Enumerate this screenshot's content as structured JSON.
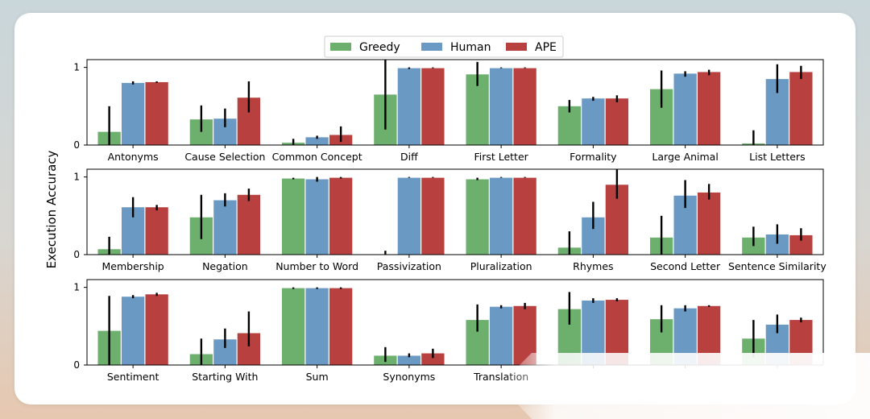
{
  "chart_data": {
    "type": "bar",
    "ylabel": "Execution Accuracy",
    "legend": {
      "placement": "top-center",
      "entries": [
        "Greedy",
        "Human",
        "APE"
      ]
    },
    "colors": {
      "Greedy": "#6daf6d",
      "Human": "#6a9ac4",
      "APE": "#b8403f",
      "errorbar": "#000000"
    },
    "ylim": [
      0,
      1.1
    ],
    "yticks": [
      "0",
      "1"
    ],
    "panels": [
      {
        "categories": [
          "Antonyms",
          "Cause Selection",
          "Common Concept",
          "Diff",
          "First Letter",
          "Formality",
          "Large Animal",
          "List Letters"
        ],
        "series": [
          {
            "name": "Greedy",
            "values": [
              0.17,
              0.33,
              0.03,
              0.65,
              0.91,
              0.5,
              0.72,
              0.02
            ],
            "err_low": [
              0.0,
              0.17,
              0.0,
              0.2,
              0.76,
              0.42,
              0.48,
              0.0
            ],
            "err_high": [
              0.5,
              0.51,
              0.08,
              1.12,
              1.07,
              0.58,
              0.96,
              0.19
            ]
          },
          {
            "name": "Human",
            "values": [
              0.8,
              0.34,
              0.1,
              0.99,
              0.99,
              0.6,
              0.92,
              0.85
            ],
            "err_low": [
              0.78,
              0.23,
              0.08,
              0.98,
              0.99,
              0.57,
              0.88,
              0.67
            ],
            "err_high": [
              0.82,
              0.47,
              0.12,
              1.0,
              1.0,
              0.62,
              0.95,
              1.04
            ]
          },
          {
            "name": "APE",
            "values": [
              0.81,
              0.61,
              0.13,
              0.99,
              0.99,
              0.6,
              0.94,
              0.94
            ],
            "err_low": [
              0.8,
              0.42,
              0.04,
              0.99,
              0.99,
              0.55,
              0.9,
              0.85
            ],
            "err_high": [
              0.82,
              0.82,
              0.24,
              1.0,
              1.0,
              0.64,
              0.97,
              1.02
            ]
          }
        ]
      },
      {
        "categories": [
          "Membership",
          "Negation",
          "Number to Word",
          "Passivization",
          "Pluralization",
          "Rhymes",
          "Second Letter",
          "Sentence Similarity"
        ],
        "series": [
          {
            "name": "Greedy",
            "values": [
              0.07,
              0.48,
              0.98,
              0.0,
              0.97,
              0.09,
              0.22,
              0.22
            ],
            "err_low": [
              0.0,
              0.2,
              0.97,
              0.0,
              0.96,
              0.0,
              0.0,
              0.11
            ],
            "err_high": [
              0.23,
              0.77,
              0.99,
              0.05,
              0.99,
              0.3,
              0.5,
              0.36
            ]
          },
          {
            "name": "Human",
            "values": [
              0.61,
              0.7,
              0.97,
              0.99,
              0.99,
              0.48,
              0.76,
              0.26
            ],
            "err_low": [
              0.48,
              0.62,
              0.94,
              0.99,
              0.99,
              0.33,
              0.6,
              0.14
            ],
            "err_high": [
              0.74,
              0.79,
              1.0,
              1.0,
              1.0,
              0.68,
              0.96,
              0.39
            ]
          },
          {
            "name": "APE",
            "values": [
              0.61,
              0.77,
              0.99,
              0.99,
              0.99,
              0.9,
              0.8,
              0.25
            ],
            "err_low": [
              0.57,
              0.69,
              0.98,
              0.99,
              0.99,
              0.72,
              0.71,
              0.18
            ],
            "err_high": [
              0.64,
              0.85,
              1.0,
              1.0,
              1.0,
              1.1,
              0.91,
              0.34
            ]
          }
        ]
      },
      {
        "categories": [
          "Sentiment",
          "Starting With",
          "Sum",
          "Synonyms",
          "Translation",
          "",
          "",
          ""
        ],
        "series": [
          {
            "name": "Greedy",
            "values": [
              0.44,
              0.14,
              0.99,
              0.12,
              0.58,
              0.72,
              0.59,
              0.34
            ],
            "err_low": [
              0.0,
              0.0,
              0.98,
              0.04,
              0.43,
              0.52,
              0.42,
              0.1
            ],
            "err_high": [
              0.89,
              0.34,
              1.0,
              0.23,
              0.78,
              0.94,
              0.77,
              0.58
            ]
          },
          {
            "name": "Human",
            "values": [
              0.88,
              0.33,
              0.99,
              0.12,
              0.75,
              0.83,
              0.73,
              0.52
            ],
            "err_low": [
              0.86,
              0.22,
              0.98,
              0.1,
              0.73,
              0.8,
              0.69,
              0.41
            ],
            "err_high": [
              0.9,
              0.47,
              1.0,
              0.15,
              0.77,
              0.86,
              0.77,
              0.65
            ]
          },
          {
            "name": "APE",
            "values": [
              0.91,
              0.41,
              0.99,
              0.15,
              0.76,
              0.84,
              0.76,
              0.58
            ],
            "err_low": [
              0.89,
              0.24,
              0.98,
              0.09,
              0.72,
              0.82,
              0.75,
              0.55
            ],
            "err_high": [
              0.93,
              0.69,
              1.0,
              0.21,
              0.8,
              0.86,
              0.77,
              0.61
            ]
          }
        ]
      }
    ]
  }
}
